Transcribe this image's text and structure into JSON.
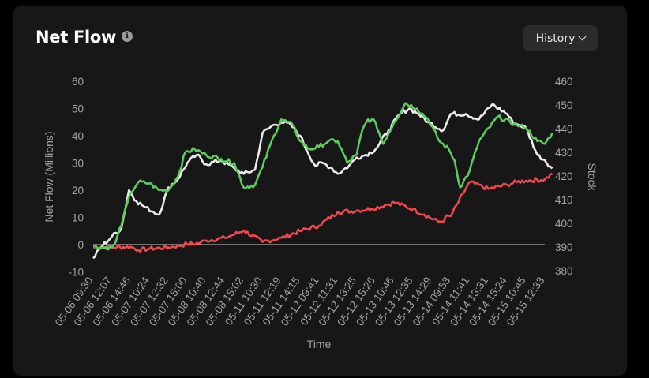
{
  "header": {
    "title": "Net Flow",
    "info_icon": "info-icon",
    "history_label": "History",
    "history_icon": "chevron-down-icon"
  },
  "chart_data": {
    "type": "line",
    "xlabel": "Time",
    "ylabel": "Net Flow (Millions)",
    "y2label": "Stock",
    "ylim": [
      -10,
      60
    ],
    "y2lim": [
      380,
      460
    ],
    "yticks": [
      -10,
      0,
      10,
      20,
      30,
      40,
      50,
      60
    ],
    "y2ticks": [
      380,
      390,
      400,
      410,
      420,
      430,
      440,
      450,
      460
    ],
    "categories": [
      "05-06 09:30",
      "05-06 12:07",
      "05-06 14:46",
      "05-07 10:24",
      "05-07 12:32",
      "05-07 15:00",
      "05-08 10:40",
      "05-08 12:44",
      "05-08 15:02",
      "05-11 10:30",
      "05-11 12:19",
      "05-11 14:15",
      "05-12 09:41",
      "05-12 11:31",
      "05-12 13:25",
      "05-12 15:26",
      "05-13 10:46",
      "05-13 12:35",
      "05-13 14:29",
      "05-14 09:53",
      "05-14 11:41",
      "05-14 13:31",
      "05-14 15:24",
      "05-15 10:45",
      "05-15 12:33"
    ],
    "grid": false,
    "legend": "none",
    "series": [
      {
        "axis": "left",
        "color": "#f0474c",
        "x": [
          0,
          1,
          2,
          2.4,
          3,
          4,
          5,
          5.6,
          6,
          7,
          7.4,
          8,
          9,
          10,
          11,
          12,
          13,
          14,
          14.8,
          15.5,
          16,
          17,
          17.6,
          18.3,
          18.6,
          18.7,
          19,
          20,
          21,
          22,
          22.5,
          23,
          24,
          24.4
        ],
        "values": [
          -1,
          -1,
          -0.8,
          -2,
          -1.5,
          -1,
          0.2,
          0.5,
          1.5,
          2.5,
          3.5,
          5.2,
          1,
          2.5,
          5,
          7,
          12,
          12.5,
          13.2,
          14.5,
          15.5,
          13,
          11,
          8.5,
          8.5,
          10,
          10.5,
          23,
          20.5,
          22,
          23,
          23.5,
          24,
          26
        ]
      },
      {
        "axis": "left",
        "color": "#ebebeb",
        "x": [
          0,
          0.4,
          1,
          1.5,
          1.9,
          2.3,
          2.7,
          3.2,
          3.5,
          4,
          4.5,
          5,
          5.5,
          6,
          6.8,
          7.5,
          8,
          8.6,
          9,
          9.6,
          10,
          10.5,
          11,
          11.4,
          11.8,
          12.2,
          12.7,
          13,
          13.6,
          14,
          14.5,
          15,
          15.7,
          16.3,
          16.8,
          17.3,
          17.8,
          18.6,
          19,
          19.8,
          20.5,
          21.2,
          22,
          22.3,
          22.6,
          23,
          23.6,
          24,
          24.4
        ],
        "values": [
          -5,
          -1,
          3,
          6,
          20,
          16,
          14,
          12,
          11,
          21,
          24,
          30,
          33,
          29.5,
          31,
          28,
          26,
          27.5,
          41,
          44,
          45,
          44,
          40,
          34,
          29,
          30,
          28,
          26,
          29,
          32,
          33,
          35,
          42,
          48,
          50,
          48,
          45,
          42,
          48,
          48,
          46,
          51.5,
          48,
          45,
          44,
          43,
          33,
          31,
          28
        ]
      },
      {
        "axis": "left",
        "color": "#5dc95f",
        "x": [
          0,
          0.4,
          1,
          1.2,
          1.6,
          2,
          2.4,
          3,
          3.5,
          4,
          4.5,
          4.9,
          5.4,
          6,
          6.8,
          7.5,
          8,
          8.6,
          9,
          9.6,
          10,
          10.6,
          11,
          11.5,
          12,
          12.5,
          13,
          13.5,
          14,
          14.3,
          14.6,
          15,
          15.4,
          16,
          16.6,
          17.2,
          17.8,
          18.4,
          18.9,
          19.2,
          19.5,
          20,
          20.5,
          21.5,
          22.5,
          23,
          23.6,
          24,
          24.4
        ],
        "values": [
          -0.5,
          -1,
          -1,
          1,
          10,
          19,
          23,
          22.5,
          20,
          20,
          25,
          34,
          35,
          33,
          31.5,
          30,
          21,
          22,
          28.5,
          40,
          46,
          44,
          38,
          35,
          36,
          38,
          38,
          30,
          33,
          42,
          46,
          45,
          37,
          45,
          52,
          50,
          46,
          38,
          35,
          31,
          21,
          27,
          38,
          47,
          44,
          43,
          38,
          37,
          41
        ]
      }
    ]
  }
}
